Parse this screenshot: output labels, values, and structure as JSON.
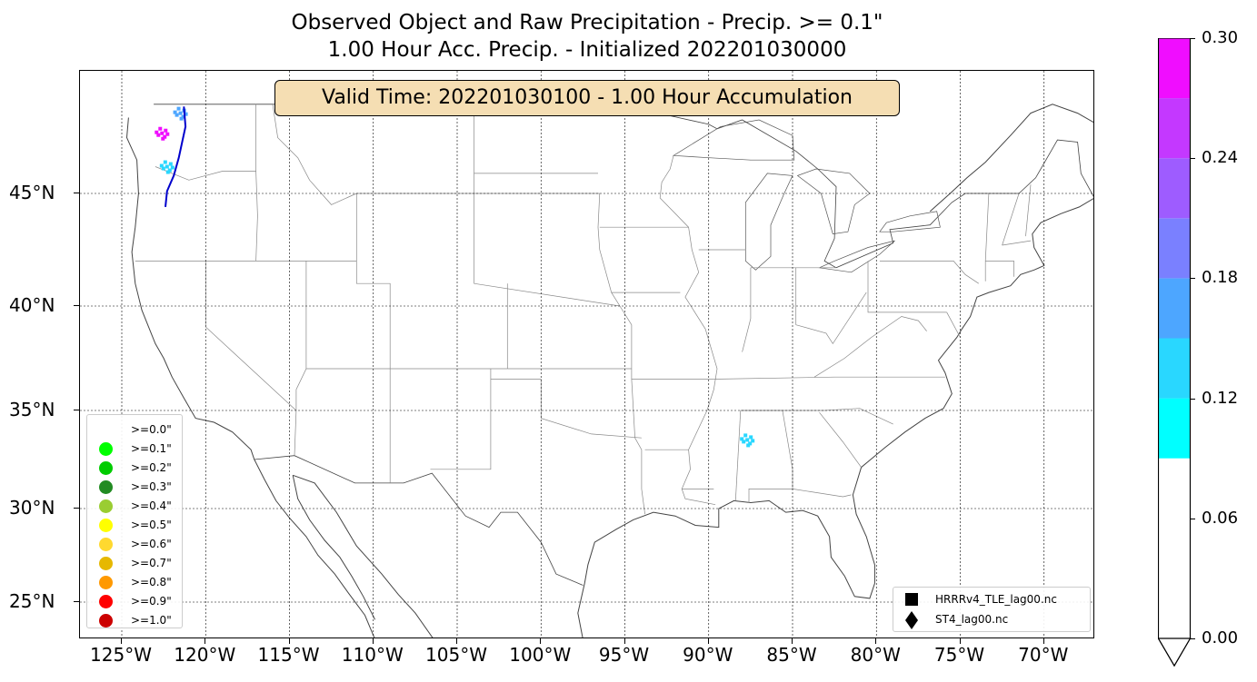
{
  "title": {
    "line1": "Observed Object and Raw Precipitation - Precip. >= 0.1\"",
    "line2": "1.00 Hour Acc. Precip. - Initialized 202201030000"
  },
  "valid_time": "Valid Time: 202201030100 - 1.00 Hour Accumulation",
  "map": {
    "extent": {
      "lon_min": -126.5,
      "lon_max": -64.5,
      "lat_min": 23.3,
      "lat_max": 50.5
    },
    "lat_ticks": [
      {
        "value": 45,
        "label": "45°N"
      },
      {
        "value": 40,
        "label": "40°N"
      },
      {
        "value": 35,
        "label": "35°N"
      },
      {
        "value": 30,
        "label": "30°N"
      },
      {
        "value": 25,
        "label": "25°N"
      }
    ],
    "lon_ticks": [
      {
        "value": -125,
        "label": "125°W"
      },
      {
        "value": -120,
        "label": "120°W"
      },
      {
        "value": -115,
        "label": "115°W"
      },
      {
        "value": -110,
        "label": "110°W"
      },
      {
        "value": -105,
        "label": "105°W"
      },
      {
        "value": -100,
        "label": "100°W"
      },
      {
        "value": -95,
        "label": "95°W"
      },
      {
        "value": -90,
        "label": "90°W"
      },
      {
        "value": -85,
        "label": "85°W"
      },
      {
        "value": -80,
        "label": "80°W"
      },
      {
        "value": -75,
        "label": "75°W"
      },
      {
        "value": -70,
        "label": "70°W"
      }
    ],
    "gridlines": "dashed",
    "object_track_color": "#0000cc",
    "precip_areas": [
      {
        "name": "washington-precip",
        "lon": -122.6,
        "lat": 47.7,
        "value": 0.27
      },
      {
        "name": "cascades-precip",
        "lon": -121.5,
        "lat": 48.6,
        "value": 0.16
      },
      {
        "name": "southwest-wa-precip",
        "lon": -122.3,
        "lat": 46.2,
        "value": 0.13
      },
      {
        "name": "mississippi-precip",
        "lon": -87.7,
        "lat": 33.5,
        "value": 0.12
      }
    ]
  },
  "threshold_legend": [
    {
      "label": ">=0.0\"",
      "color": "#ffffff"
    },
    {
      "label": ">=0.1\"",
      "color": "#00ff00"
    },
    {
      "label": ">=0.2\"",
      "color": "#00cc00"
    },
    {
      "label": ">=0.3\"",
      "color": "#228b22"
    },
    {
      "label": ">=0.4\"",
      "color": "#9acd32"
    },
    {
      "label": ">=0.5\"",
      "color": "#ffff00"
    },
    {
      "label": ">=0.6\"",
      "color": "#ffd92f"
    },
    {
      "label": ">=0.7\"",
      "color": "#e6b800"
    },
    {
      "label": ">=0.8\"",
      "color": "#ff9900"
    },
    {
      "label": ">=0.9\"",
      "color": "#ff0000"
    },
    {
      "label": ">=1.0\"",
      "color": "#cc0000"
    }
  ],
  "model_legend": [
    {
      "marker": "square",
      "label": "HRRRv4_TLE_lag00.nc"
    },
    {
      "marker": "diamond",
      "label": "ST4_lag00.nc"
    }
  ],
  "colorbar": {
    "ticks": [
      "0.30",
      "0.24",
      "0.18",
      "0.12",
      "0.06",
      "0.00"
    ],
    "bands": [
      {
        "from": 0.0,
        "to": 0.09,
        "color": "#ffffff"
      },
      {
        "from": 0.09,
        "to": 0.12,
        "color": "#00ffff"
      },
      {
        "from": 0.12,
        "to": 0.15,
        "color": "#29d7ff"
      },
      {
        "from": 0.15,
        "to": 0.18,
        "color": "#4da6ff"
      },
      {
        "from": 0.18,
        "to": 0.21,
        "color": "#7a80ff"
      },
      {
        "from": 0.21,
        "to": 0.24,
        "color": "#9e5cff"
      },
      {
        "from": 0.24,
        "to": 0.27,
        "color": "#c438ff"
      },
      {
        "from": 0.27,
        "to": 0.3,
        "color": "#f00dff"
      }
    ],
    "extend": "min"
  }
}
